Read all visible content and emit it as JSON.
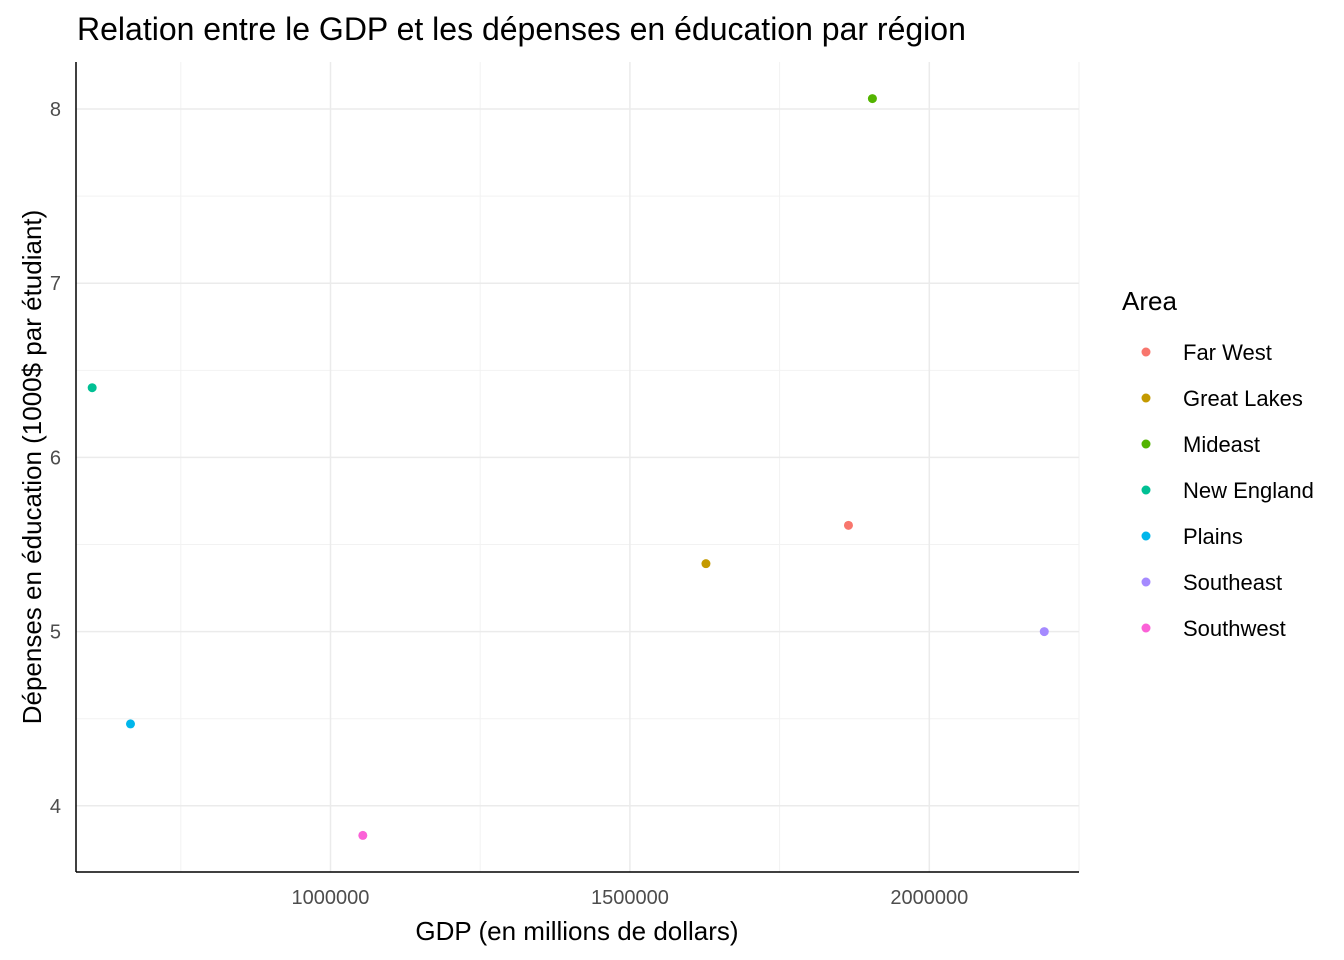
{
  "chart_data": {
    "type": "scatter",
    "title": "Relation entre le GDP et les dépenses en éducation par région",
    "xlabel": "GDP (en millions de dollars)",
    "ylabel": "Dépenses en éducation (1000$ par étudiant)",
    "xlim": [
      575000,
      2250000
    ],
    "ylim": [
      3.62,
      8.27
    ],
    "x_ticks": [
      1000000,
      1500000,
      2000000
    ],
    "x_tick_labels": [
      "1000000",
      "1500000",
      "2000000"
    ],
    "y_ticks": [
      4,
      5,
      6,
      7,
      8
    ],
    "y_tick_labels": [
      "4",
      "5",
      "6",
      "7",
      "8"
    ],
    "grid": true,
    "legend_title": "Area",
    "legend_position": "right",
    "series": [
      {
        "name": "Far West",
        "color": "#F8766D",
        "x": 1865000,
        "y": 5.61
      },
      {
        "name": "Great Lakes",
        "color": "#C49A00",
        "x": 1627000,
        "y": 5.39
      },
      {
        "name": "Mideast",
        "color": "#53B400",
        "x": 1905000,
        "y": 8.06
      },
      {
        "name": "New England",
        "color": "#00C094",
        "x": 602000,
        "y": 6.4
      },
      {
        "name": "Plains",
        "color": "#00B6EB",
        "x": 666000,
        "y": 4.47
      },
      {
        "name": "Southeast",
        "color": "#A58AFF",
        "x": 2192000,
        "y": 5.0
      },
      {
        "name": "Southwest",
        "color": "#FB61D7",
        "x": 1054000,
        "y": 3.83
      }
    ]
  }
}
